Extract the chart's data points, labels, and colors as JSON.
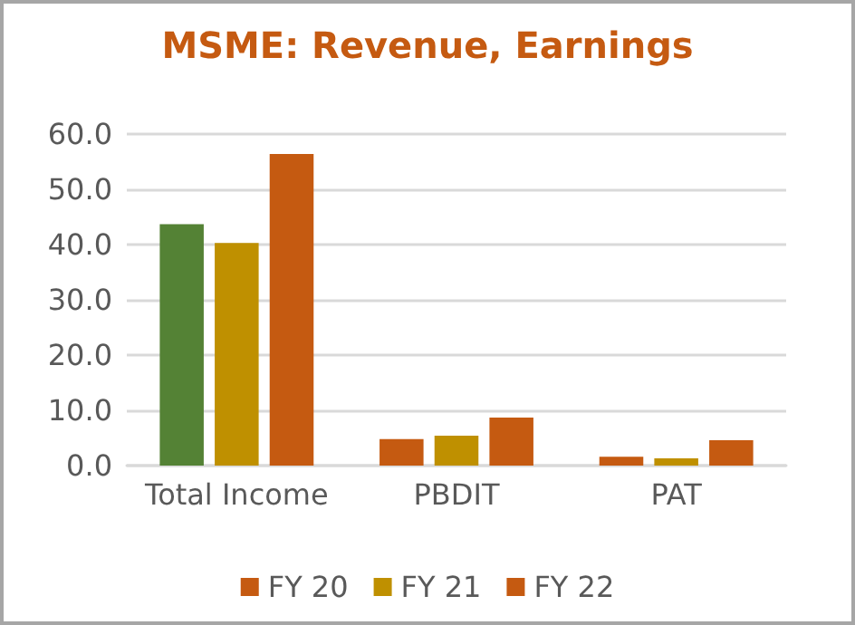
{
  "chart_data": {
    "type": "bar",
    "title": "MSME: Revenue, Earnings",
    "categories": [
      "Total Income",
      "PBDIT",
      "PAT"
    ],
    "series": [
      {
        "name": "FY 20",
        "color": "#c55a11",
        "colors": [
          "#548235",
          "#c55a11",
          "#c55a11"
        ],
        "values": [
          43.7,
          4.8,
          1.6
        ]
      },
      {
        "name": "FY 21",
        "color": "#bf9000",
        "values": [
          40.3,
          5.4,
          1.3
        ]
      },
      {
        "name": "FY 22",
        "color": "#c55a11",
        "values": [
          56.4,
          8.7,
          4.6
        ]
      }
    ],
    "ylim": [
      0,
      60
    ],
    "yticks": [
      {
        "value": 0,
        "label": "0.0"
      },
      {
        "value": 10,
        "label": "10.0"
      },
      {
        "value": 20,
        "label": "20.0"
      },
      {
        "value": 30,
        "label": "30.0"
      },
      {
        "value": 40,
        "label": "40.0"
      },
      {
        "value": 50,
        "label": "50.0"
      },
      {
        "value": 60,
        "label": "60.0"
      }
    ],
    "grid": "y",
    "legend": "bottom"
  }
}
